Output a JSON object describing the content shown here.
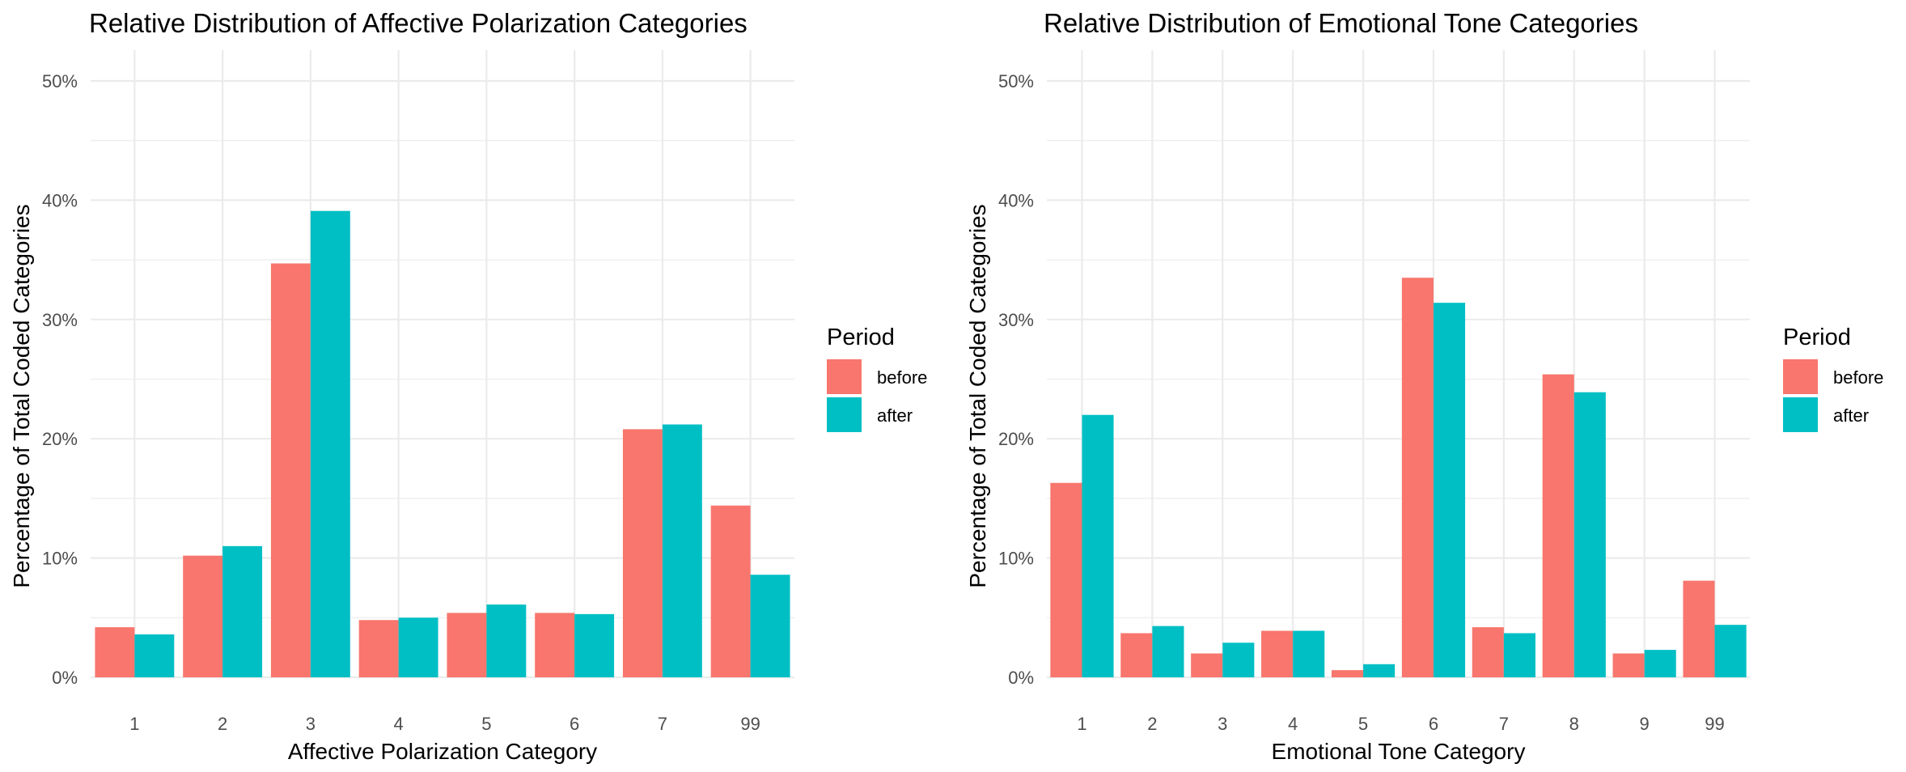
{
  "chart_data": [
    {
      "type": "bar",
      "title": "Relative Distribution of Affective Polarization Categories",
      "xlabel": "Affective Polarization Category",
      "ylabel": "Percentage of Total Coded Categories",
      "categories": [
        "1",
        "2",
        "3",
        "4",
        "5",
        "6",
        "7",
        "99"
      ],
      "series": [
        {
          "name": "before",
          "values": [
            4.2,
            10.2,
            34.7,
            4.8,
            5.4,
            5.4,
            20.8,
            14.4
          ]
        },
        {
          "name": "after",
          "values": [
            3.6,
            11.0,
            39.1,
            5.0,
            6.1,
            5.3,
            21.2,
            8.6
          ]
        }
      ],
      "ylim": [
        0,
        50
      ],
      "yticks": [
        "0%",
        "10%",
        "20%",
        "30%",
        "40%",
        "50%"
      ],
      "grid": true,
      "legend": {
        "title": "Period",
        "placement": "right"
      }
    },
    {
      "type": "bar",
      "title": "Relative Distribution of Emotional Tone Categories",
      "xlabel": "Emotional Tone Category",
      "ylabel": "Percentage of Total Coded Categories",
      "categories": [
        "1",
        "2",
        "3",
        "4",
        "5",
        "6",
        "7",
        "8",
        "9",
        "99"
      ],
      "series": [
        {
          "name": "before",
          "values": [
            16.3,
            3.7,
            2.0,
            3.9,
            0.6,
            33.5,
            4.2,
            25.4,
            2.0,
            8.1
          ]
        },
        {
          "name": "after",
          "values": [
            22.0,
            4.3,
            2.9,
            3.9,
            1.1,
            31.4,
            3.7,
            23.9,
            2.3,
            4.4
          ]
        }
      ],
      "ylim": [
        0,
        50
      ],
      "yticks": [
        "0%",
        "10%",
        "20%",
        "30%",
        "40%",
        "50%"
      ],
      "grid": true,
      "legend": {
        "title": "Period",
        "placement": "right"
      }
    }
  ],
  "colors": {
    "before": "#F8766D",
    "after": "#00BFC4",
    "grid": "#ebebeb",
    "tick_text": "#4d4d4d"
  }
}
